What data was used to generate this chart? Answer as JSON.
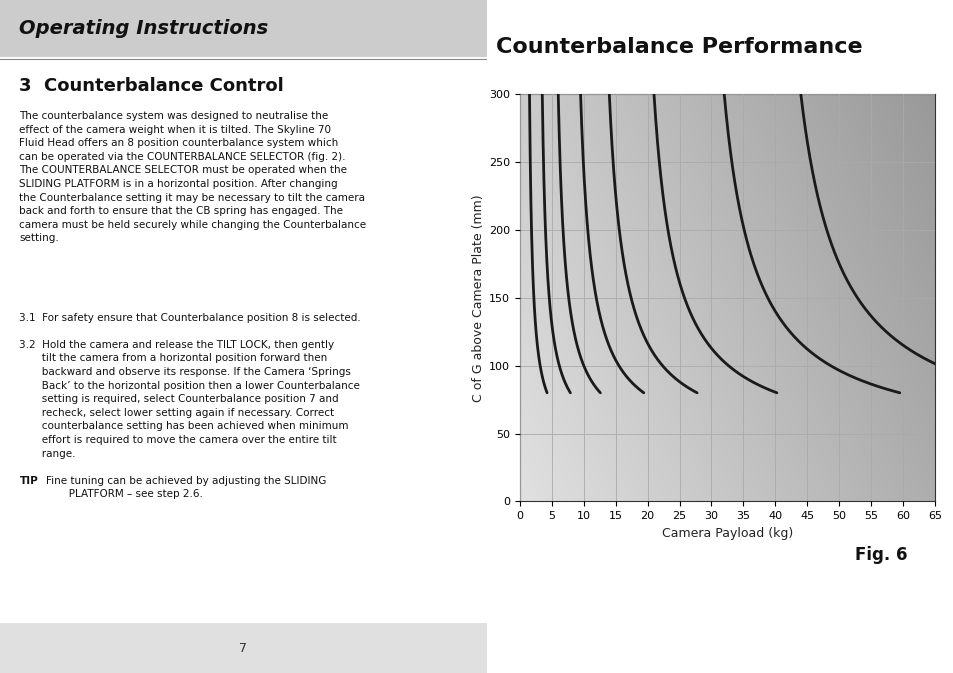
{
  "title": "Counterbalance Performance",
  "xlabel": "Camera Payload (kg)",
  "ylabel": "C of G above Camera Plate (mm)",
  "fig_label": "Fig. 6",
  "xlim": [
    0,
    65
  ],
  "ylim": [
    0,
    300
  ],
  "xticks": [
    0,
    5,
    10,
    15,
    20,
    25,
    30,
    35,
    40,
    45,
    50,
    55,
    60,
    65
  ],
  "yticks": [
    0,
    50,
    100,
    150,
    200,
    250,
    300
  ],
  "curve_tops": [
    1.5,
    3.5,
    6.0,
    9.5,
    14.0,
    21.0,
    32.0,
    44.0
  ],
  "curve_x0_offsets": [
    0.5,
    0.8,
    1.2,
    1.8,
    2.5,
    3.5,
    5.0,
    6.5
  ],
  "min_y": 40,
  "line_color": "#1a1a1a",
  "line_width": 2.0,
  "grid_color": "#aaaaaa",
  "header_bg_color": "#cccccc",
  "footer_bg_color": "#e0e0e0",
  "page_bg_color": "#ffffff",
  "title_fontsize": 16,
  "axis_label_fontsize": 9,
  "tick_fontsize": 8,
  "fig6_fontsize": 12,
  "header_text": "Operating Instructions",
  "section_heading": "3  Counterbalance Control",
  "body_text": "The counterbalance system was designed to neutralise the\neffect of the camera weight when it is tilted. The Skyline 70\nFluid Head offers an 8 position counterbalance system which\ncan be operated via the COUNTERBALANCE SELECTOR (fig. 2).\nThe COUNTERBALANCE SELECTOR must be operated when the\nSLIDING PLATFORM is in a horizontal position. After changing\nthe Counterbalance setting it may be necessary to tilt the camera\nback and forth to ensure that the CB spring has engaged. The\ncamera must be held securely while changing the Counterbalance\nsetting.",
  "step31": "3.1  For safety ensure that Counterbalance position 8 is selected.",
  "step32": "3.2  Hold the camera and release the TILT LOCK, then gently\n       tilt the camera from a horizontal position forward then\n       backward and observe its response. If the Camera ‘Springs\n       Back’ to the horizontal position then a lower Counterbalance\n       setting is required, select Counterbalance position 7 and\n       recheck, select lower setting again if necessary. Correct\n       counterbalance setting has been achieved when minimum\n       effort is required to move the camera over the entire tilt\n       range.",
  "tip_text": "Fine tuning can be achieved by adjusting the SLIDING\n       PLATFORM – see step 2.6.",
  "page_number": "7"
}
